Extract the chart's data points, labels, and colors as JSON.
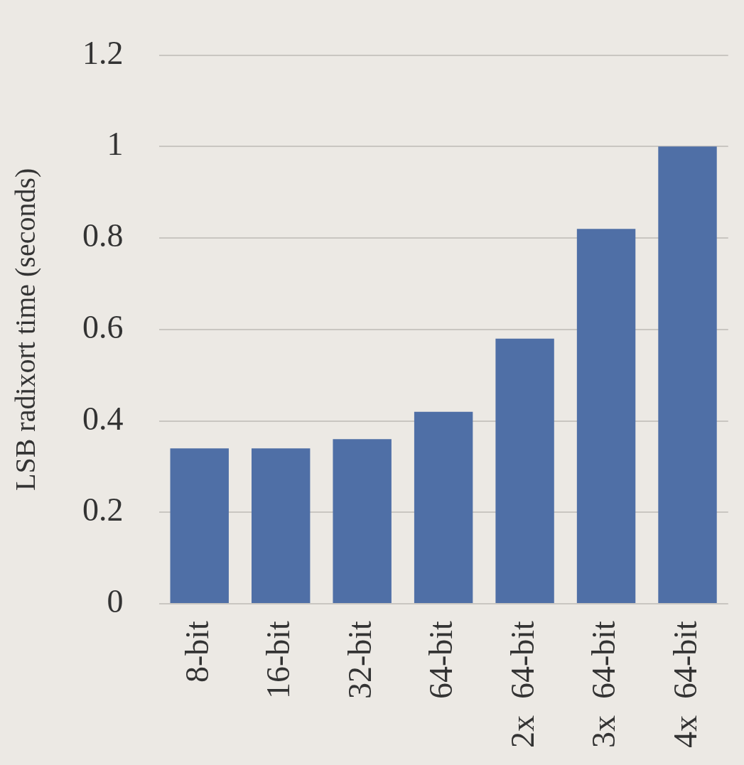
{
  "chart_data": {
    "type": "bar",
    "ylabel": "LSB radixort time (seconds)",
    "categories": [
      "8-bit",
      "16-bit",
      "32-bit",
      "64-bit",
      "2x  64-bit",
      "3x  64-bit",
      "4x  64-bit"
    ],
    "values": [
      0.34,
      0.34,
      0.36,
      0.42,
      0.58,
      0.82,
      1.0
    ],
    "color": "#4f6fa6",
    "ylim": [
      0,
      1.2
    ],
    "yticks": [
      0,
      0.2,
      0.4,
      0.6,
      0.8,
      1,
      1.2
    ],
    "grid": "y",
    "legend": false
  }
}
